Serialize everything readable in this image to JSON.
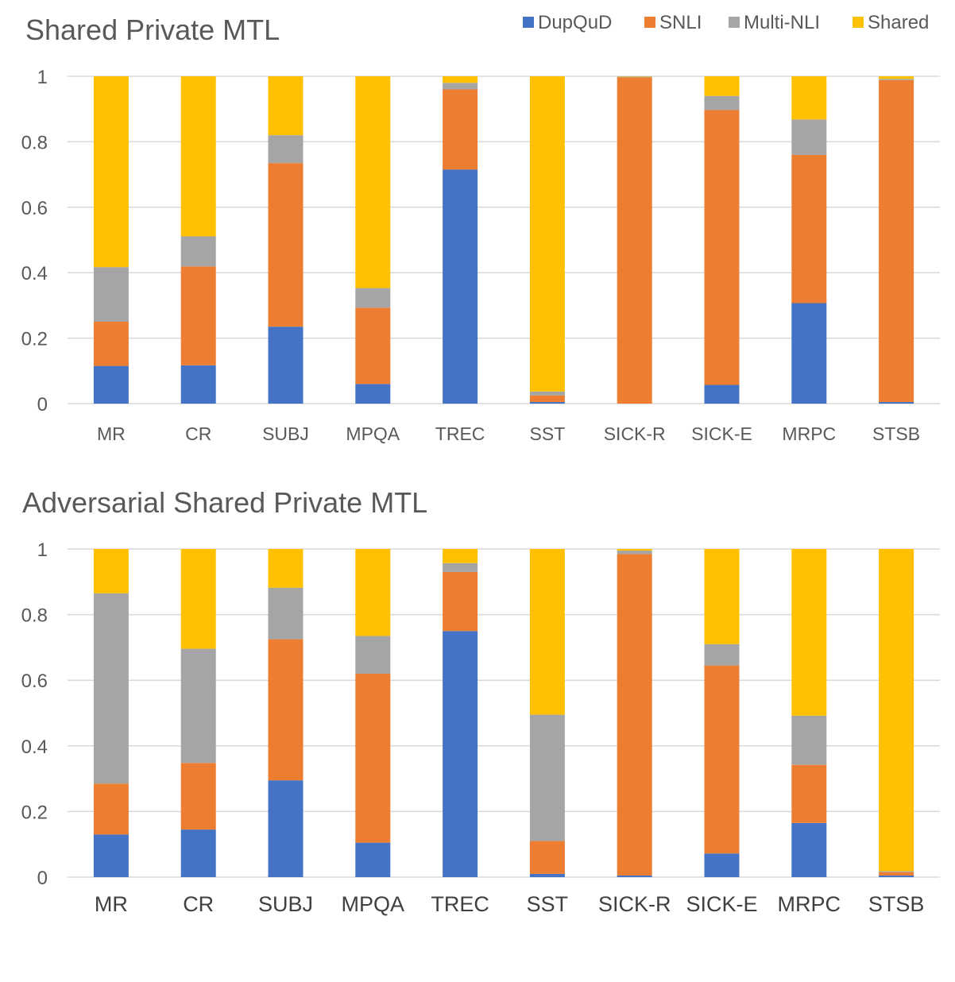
{
  "colors": {
    "DupQuD": "#4472C4",
    "SNLI": "#ED7D31",
    "Multi-NLI": "#A5A5A5",
    "Shared": "#FFC000",
    "grid": "#D9D9D9",
    "text": "#595959"
  },
  "legend": [
    "DupQuD",
    "SNLI",
    "Multi-NLI",
    "Shared"
  ],
  "chart_data": [
    {
      "type": "bar",
      "stacked": true,
      "title": "Shared Private MTL",
      "categories": [
        "MR",
        "CR",
        "SUBJ",
        "MPQA",
        "TREC",
        "SST",
        "SICK-R",
        "SICK-E",
        "MRPC",
        "STSB"
      ],
      "ylim": [
        0,
        1
      ],
      "yticks": [
        "0",
        "0.2",
        "0.4",
        "0.6",
        "0.8",
        "1"
      ],
      "grid": true,
      "legend_position": "top-right",
      "series": [
        {
          "name": "DupQuD",
          "values": [
            0.115,
            0.117,
            0.235,
            0.06,
            0.715,
            0.005,
            0.0,
            0.057,
            0.307,
            0.005
          ]
        },
        {
          "name": "SNLI",
          "values": [
            0.135,
            0.302,
            0.5,
            0.233,
            0.245,
            0.02,
            0.997,
            0.84,
            0.453,
            0.983
          ]
        },
        {
          "name": "Multi-NLI",
          "values": [
            0.167,
            0.092,
            0.085,
            0.06,
            0.02,
            0.012,
            0.002,
            0.043,
            0.108,
            0.004
          ]
        },
        {
          "name": "Shared",
          "values": [
            0.583,
            0.489,
            0.18,
            0.647,
            0.02,
            0.963,
            0.001,
            0.06,
            0.132,
            0.008
          ]
        }
      ]
    },
    {
      "type": "bar",
      "stacked": true,
      "title": "Adversarial Shared Private MTL",
      "categories": [
        "MR",
        "CR",
        "SUBJ",
        "MPQA",
        "TREC",
        "SST",
        "SICK-R",
        "SICK-E",
        "MRPC",
        "STSB"
      ],
      "ylim": [
        0,
        1
      ],
      "yticks": [
        "0",
        "0.2",
        "0.4",
        "0.6",
        "0.8",
        "1"
      ],
      "grid": true,
      "series": [
        {
          "name": "DupQuD",
          "values": [
            0.13,
            0.145,
            0.295,
            0.105,
            0.75,
            0.01,
            0.005,
            0.072,
            0.165,
            0.005
          ]
        },
        {
          "name": "SNLI",
          "values": [
            0.155,
            0.203,
            0.43,
            0.515,
            0.18,
            0.1,
            0.98,
            0.573,
            0.177,
            0.01
          ]
        },
        {
          "name": "Multi-NLI",
          "values": [
            0.58,
            0.348,
            0.157,
            0.115,
            0.027,
            0.385,
            0.01,
            0.065,
            0.15,
            0.003
          ]
        },
        {
          "name": "Shared",
          "values": [
            0.135,
            0.304,
            0.118,
            0.265,
            0.043,
            0.505,
            0.005,
            0.29,
            0.508,
            0.982
          ]
        }
      ]
    }
  ]
}
